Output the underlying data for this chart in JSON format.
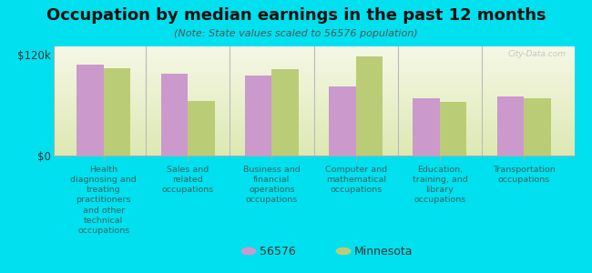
{
  "title": "Occupation by median earnings in the past 12 months",
  "subtitle": "(Note: State values scaled to 56576 population)",
  "background_color": "#00e0ee",
  "plot_bg_top": "#f5f8e8",
  "plot_bg_bottom": "#dde8b0",
  "bar_color_local": "#cc99cc",
  "bar_color_state": "#bbcc77",
  "categories": [
    "Health\ndiagnosing and\ntreating\npractitioners\nand other\ntechnical\noccupations",
    "Sales and\nrelated\noccupations",
    "Business and\nfinancial\noperations\noccupations",
    "Computer and\nmathematical\noccupations",
    "Education,\ntraining, and\nlibrary\noccupations",
    "Transportation\noccupations"
  ],
  "local_values": [
    108000,
    98000,
    95000,
    82000,
    68000,
    70000
  ],
  "state_values": [
    104000,
    65000,
    103000,
    118000,
    64000,
    68000
  ],
  "ylim": [
    0,
    130000
  ],
  "ytick_labels": [
    "$0",
    "$120k"
  ],
  "ytick_vals": [
    0,
    120000
  ],
  "legend_local": "56576",
  "legend_state": "Minnesota",
  "watermark": "City-Data.com",
  "title_fontsize": 13,
  "subtitle_fontsize": 8,
  "xlabel_fontsize": 6.8,
  "ylabel_fontsize": 8.5
}
